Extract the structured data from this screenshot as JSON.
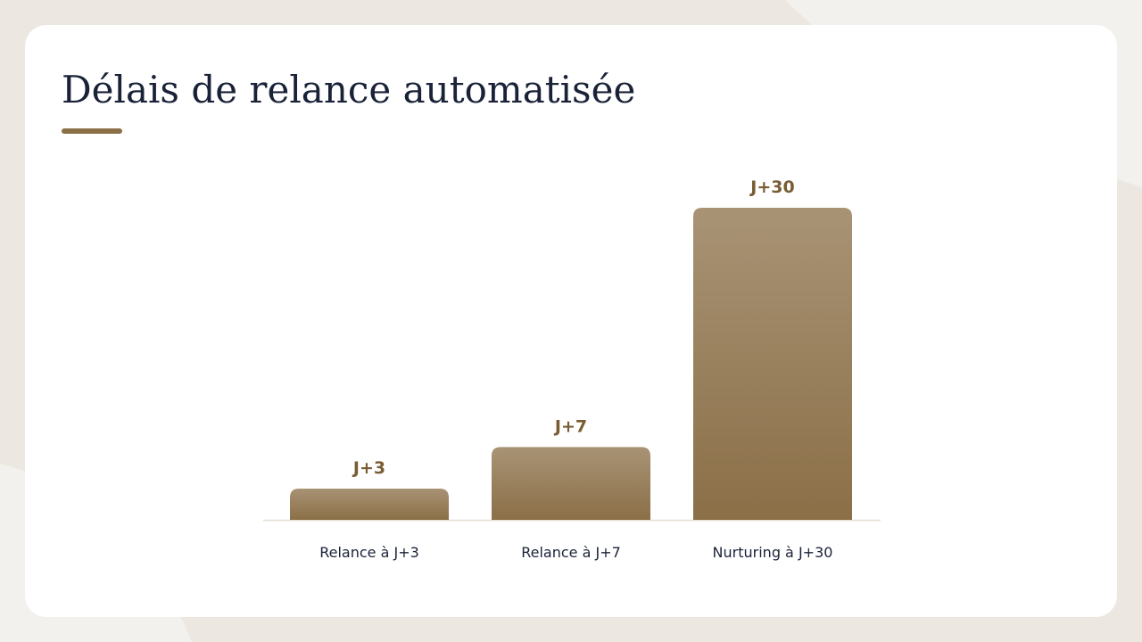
{
  "chart_data": {
    "type": "bar",
    "title": "Délais de relance automatisée",
    "categories": [
      "Relance à J+3",
      "Relance à J+7",
      "Nurturing à J+30"
    ],
    "values": [
      3,
      7,
      30
    ],
    "value_labels": [
      "J+3",
      "J+7",
      "J+30"
    ],
    "color": "#8b6f47",
    "ylim": [
      0,
      30
    ]
  }
}
